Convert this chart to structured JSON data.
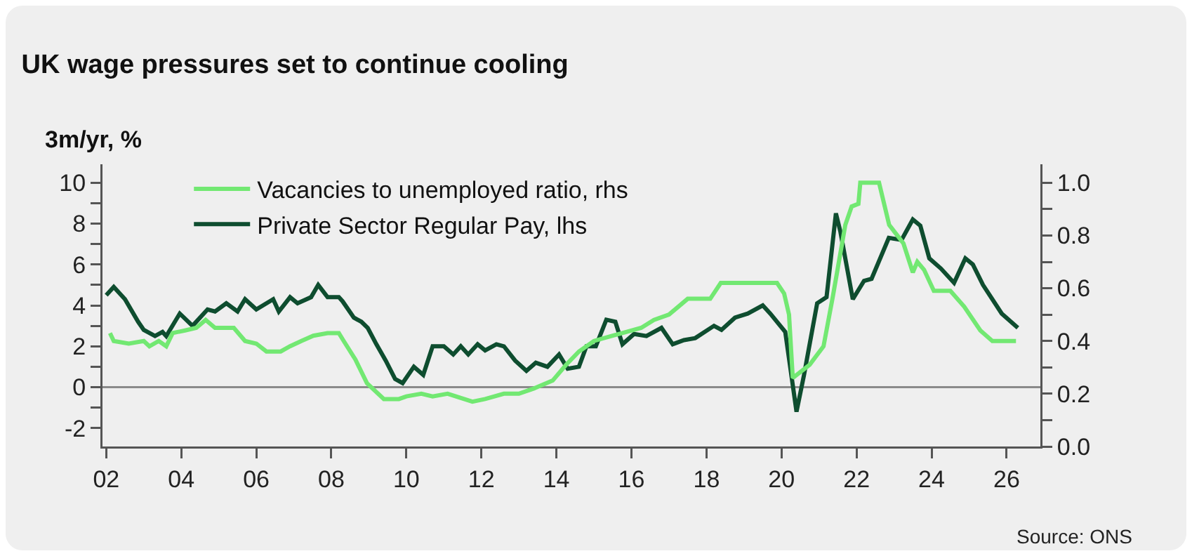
{
  "chart_data": {
    "type": "line",
    "title": "UK wage pressures set to continue cooling",
    "ylabel": "3m/yr, %",
    "annotations": [
      "Source: ONS"
    ],
    "xlim": [
      2001.9,
      2026.9
    ],
    "xticks": [
      {
        "value": 2002,
        "label": "02"
      },
      {
        "value": 2004,
        "label": "04"
      },
      {
        "value": 2006,
        "label": "06"
      },
      {
        "value": 2008,
        "label": "08"
      },
      {
        "value": 2010,
        "label": "10"
      },
      {
        "value": 2012,
        "label": "12"
      },
      {
        "value": 2014,
        "label": "14"
      },
      {
        "value": 2016,
        "label": "16"
      },
      {
        "value": 2018,
        "label": "18"
      },
      {
        "value": 2020,
        "label": "20"
      },
      {
        "value": 2022,
        "label": "22"
      },
      {
        "value": 2024,
        "label": "24"
      },
      {
        "value": 2026,
        "label": "26"
      }
    ],
    "ylim": [
      -2.9,
      10.9
    ],
    "yticks": [
      -2,
      {
        "value": -1,
        "label": null
      },
      0,
      {
        "value": 1,
        "label": null
      },
      2,
      {
        "value": 3,
        "label": null
      },
      4,
      {
        "value": 5,
        "label": null
      },
      6,
      {
        "value": 7,
        "label": null
      },
      8,
      {
        "value": 9,
        "label": null
      },
      10
    ],
    "y2lim": [
      0,
      1.07
    ],
    "y2ticks": [
      {
        "value": 0,
        "label": "0.0"
      },
      {
        "value": 0.1,
        "label": null
      },
      {
        "value": 0.2,
        "label": "0.2"
      },
      {
        "value": 0.3,
        "label": null
      },
      {
        "value": 0.4,
        "label": "0.4"
      },
      {
        "value": 0.5,
        "label": null
      },
      {
        "value": 0.6,
        "label": "0.6"
      },
      {
        "value": 0.7,
        "label": null
      },
      {
        "value": 0.8,
        "label": "0.8"
      },
      {
        "value": 0.9,
        "label": null
      },
      {
        "value": 1,
        "label": "1.0"
      }
    ],
    "grid": false,
    "legend": "top left",
    "marker": "none",
    "line_style": "solid",
    "ref_lines": [
      {
        "axis": "y",
        "value": 0,
        "color": "#8a8a8a"
      }
    ],
    "series": [
      {
        "name": "Vacancies to unemployed ratio, rhs",
        "color": "#72e872",
        "axis": "y2",
        "x": [
          2002.1,
          2002.2,
          2002.6,
          2003.0,
          2003.15,
          2003.4,
          2003.6,
          2003.77,
          2004.1,
          2004.4,
          2004.65,
          2004.9,
          2005.4,
          2005.7,
          2006.0,
          2006.27,
          2006.65,
          2006.9,
          2007.2,
          2007.52,
          2007.9,
          2008.2,
          2008.33,
          2008.64,
          2008.95,
          2009.4,
          2009.8,
          2010.0,
          2010.4,
          2010.7,
          2011.1,
          2011.76,
          2012.1,
          2012.6,
          2013.0,
          2013.4,
          2013.9,
          2014.26,
          2014.6,
          2015.0,
          2015.5,
          2015.76,
          2016.26,
          2016.6,
          2017.0,
          2017.25,
          2017.5,
          2018.1,
          2018.38,
          2019.88,
          2020.07,
          2020.2,
          2020.3,
          2020.75,
          2021.12,
          2021.37,
          2021.7,
          2021.87,
          2022.05,
          2022.1,
          2022.6,
          2022.87,
          2023.25,
          2023.5,
          2023.62,
          2023.8,
          2024.06,
          2024.5,
          2024.87,
          2025.3,
          2025.62,
          2026.25
        ],
        "values": [
          0.43,
          0.4,
          0.39,
          0.4,
          0.38,
          0.4,
          0.38,
          0.43,
          0.44,
          0.45,
          0.48,
          0.45,
          0.45,
          0.4,
          0.39,
          0.36,
          0.36,
          0.38,
          0.4,
          0.42,
          0.43,
          0.43,
          0.4,
          0.33,
          0.24,
          0.18,
          0.18,
          0.19,
          0.2,
          0.19,
          0.2,
          0.17,
          0.18,
          0.2,
          0.2,
          0.22,
          0.25,
          0.31,
          0.36,
          0.4,
          0.42,
          0.43,
          0.45,
          0.48,
          0.5,
          0.53,
          0.56,
          0.56,
          0.62,
          0.62,
          0.58,
          0.5,
          0.26,
          0.31,
          0.38,
          0.57,
          0.84,
          0.91,
          0.92,
          1.0,
          1.0,
          0.84,
          0.77,
          0.66,
          0.7,
          0.67,
          0.59,
          0.59,
          0.53,
          0.44,
          0.4,
          0.4
        ]
      },
      {
        "name": "Private Sector Regular Pay, lhs",
        "color": "#0e4d2f",
        "x": [
          2002.0,
          2002.2,
          2002.5,
          2002.85,
          2003.0,
          2003.3,
          2003.5,
          2003.6,
          2003.96,
          2004.3,
          2004.7,
          2004.9,
          2005.2,
          2005.5,
          2005.7,
          2006.0,
          2006.45,
          2006.6,
          2006.9,
          2007.1,
          2007.46,
          2007.65,
          2007.9,
          2008.2,
          2008.3,
          2008.6,
          2008.8,
          2008.97,
          2009.2,
          2009.45,
          2009.7,
          2009.9,
          2010.2,
          2010.45,
          2010.7,
          2011.0,
          2011.25,
          2011.45,
          2011.65,
          2011.9,
          2012.1,
          2012.4,
          2012.6,
          2012.9,
          2013.2,
          2013.45,
          2013.76,
          2014.07,
          2014.3,
          2014.6,
          2014.8,
          2015.05,
          2015.33,
          2015.57,
          2015.76,
          2016.07,
          2016.4,
          2016.8,
          2017.1,
          2017.4,
          2017.7,
          2018.2,
          2018.4,
          2018.76,
          2019.1,
          2019.5,
          2019.7,
          2020.1,
          2020.4,
          2020.6,
          2020.95,
          2021.2,
          2021.45,
          2021.57,
          2021.9,
          2022.2,
          2022.4,
          2022.86,
          2023.2,
          2023.5,
          2023.7,
          2023.94,
          2024.25,
          2024.6,
          2024.9,
          2025.1,
          2025.37,
          2025.87,
          2026.3
        ],
        "values": [
          4.5,
          4.9,
          4.3,
          3.2,
          2.8,
          2.5,
          2.7,
          2.5,
          3.6,
          3.0,
          3.8,
          3.7,
          4.1,
          3.7,
          4.3,
          3.8,
          4.3,
          3.7,
          4.4,
          4.1,
          4.4,
          5.0,
          4.4,
          4.4,
          4.2,
          3.4,
          3.2,
          2.9,
          2.1,
          1.3,
          0.4,
          0.2,
          1.0,
          0.6,
          2.0,
          2.0,
          1.6,
          2.0,
          1.6,
          2.1,
          1.8,
          2.1,
          2.0,
          1.3,
          0.8,
          1.2,
          1.0,
          1.6,
          0.9,
          1.0,
          2.0,
          2.0,
          3.3,
          3.2,
          2.1,
          2.6,
          2.5,
          2.9,
          2.1,
          2.3,
          2.4,
          3.0,
          2.8,
          3.4,
          3.6,
          4.0,
          3.6,
          2.7,
          -1.2,
          0.6,
          4.1,
          4.4,
          8.5,
          7.6,
          4.3,
          5.2,
          5.3,
          7.3,
          7.2,
          8.2,
          7.9,
          6.3,
          5.8,
          5.1,
          6.3,
          6.0,
          5.0,
          3.6,
          2.9
        ]
      }
    ]
  }
}
